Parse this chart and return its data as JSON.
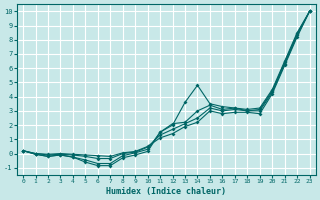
{
  "xlabel": "Humidex (Indice chaleur)",
  "xlim": [
    -0.5,
    23.5
  ],
  "ylim": [
    -1.5,
    10.5
  ],
  "xticks": [
    0,
    1,
    2,
    3,
    4,
    5,
    6,
    7,
    8,
    9,
    10,
    11,
    12,
    13,
    14,
    15,
    16,
    17,
    18,
    19,
    20,
    21,
    22,
    23
  ],
  "yticks": [
    -1,
    0,
    1,
    2,
    3,
    4,
    5,
    6,
    7,
    8,
    9,
    10
  ],
  "bg_color": "#c8e8e8",
  "grid_color": "#ffffff",
  "line_color": "#006666",
  "lines": [
    {
      "x": [
        0,
        1,
        2,
        3,
        4,
        5,
        6,
        7,
        8,
        9,
        10,
        11,
        12,
        13,
        14,
        15,
        16,
        17,
        18,
        19,
        20,
        21,
        22,
        23
      ],
      "y": [
        0.2,
        -0.05,
        -0.2,
        -0.1,
        -0.25,
        -0.6,
        -0.85,
        -0.85,
        -0.3,
        -0.1,
        0.15,
        1.5,
        2.0,
        3.6,
        4.8,
        3.5,
        3.3,
        3.2,
        3.1,
        3.2,
        4.5,
        6.5,
        8.5,
        10.0
      ]
    },
    {
      "x": [
        0,
        1,
        2,
        3,
        4,
        5,
        6,
        7,
        8,
        9,
        10,
        11,
        12,
        13,
        14,
        15,
        16,
        17,
        18,
        19,
        20,
        21,
        22,
        23
      ],
      "y": [
        0.2,
        -0.05,
        -0.2,
        -0.1,
        -0.25,
        -0.45,
        -0.7,
        -0.7,
        -0.15,
        0.05,
        0.3,
        1.5,
        2.1,
        2.2,
        3.0,
        3.4,
        3.1,
        3.2,
        3.0,
        3.1,
        4.4,
        6.4,
        8.4,
        10.0
      ]
    },
    {
      "x": [
        0,
        1,
        2,
        3,
        4,
        5,
        6,
        7,
        8,
        9,
        10,
        11,
        12,
        13,
        14,
        15,
        16,
        17,
        18,
        19,
        20,
        21,
        22,
        23
      ],
      "y": [
        0.2,
        -0.0,
        -0.1,
        -0.05,
        -0.1,
        -0.2,
        -0.35,
        -0.35,
        0.0,
        0.1,
        0.45,
        1.3,
        1.7,
        2.1,
        2.5,
        3.2,
        3.0,
        3.1,
        3.0,
        3.0,
        4.3,
        6.3,
        8.3,
        10.0
      ]
    },
    {
      "x": [
        0,
        1,
        2,
        3,
        4,
        5,
        6,
        7,
        8,
        9,
        10,
        11,
        12,
        13,
        14,
        15,
        16,
        17,
        18,
        19,
        20,
        21,
        22,
        23
      ],
      "y": [
        0.2,
        0.0,
        -0.05,
        0.0,
        -0.05,
        -0.1,
        -0.15,
        -0.2,
        0.05,
        0.15,
        0.5,
        1.1,
        1.4,
        1.9,
        2.2,
        3.0,
        2.8,
        2.9,
        2.9,
        2.8,
        4.2,
        6.2,
        8.2,
        10.0
      ]
    }
  ]
}
